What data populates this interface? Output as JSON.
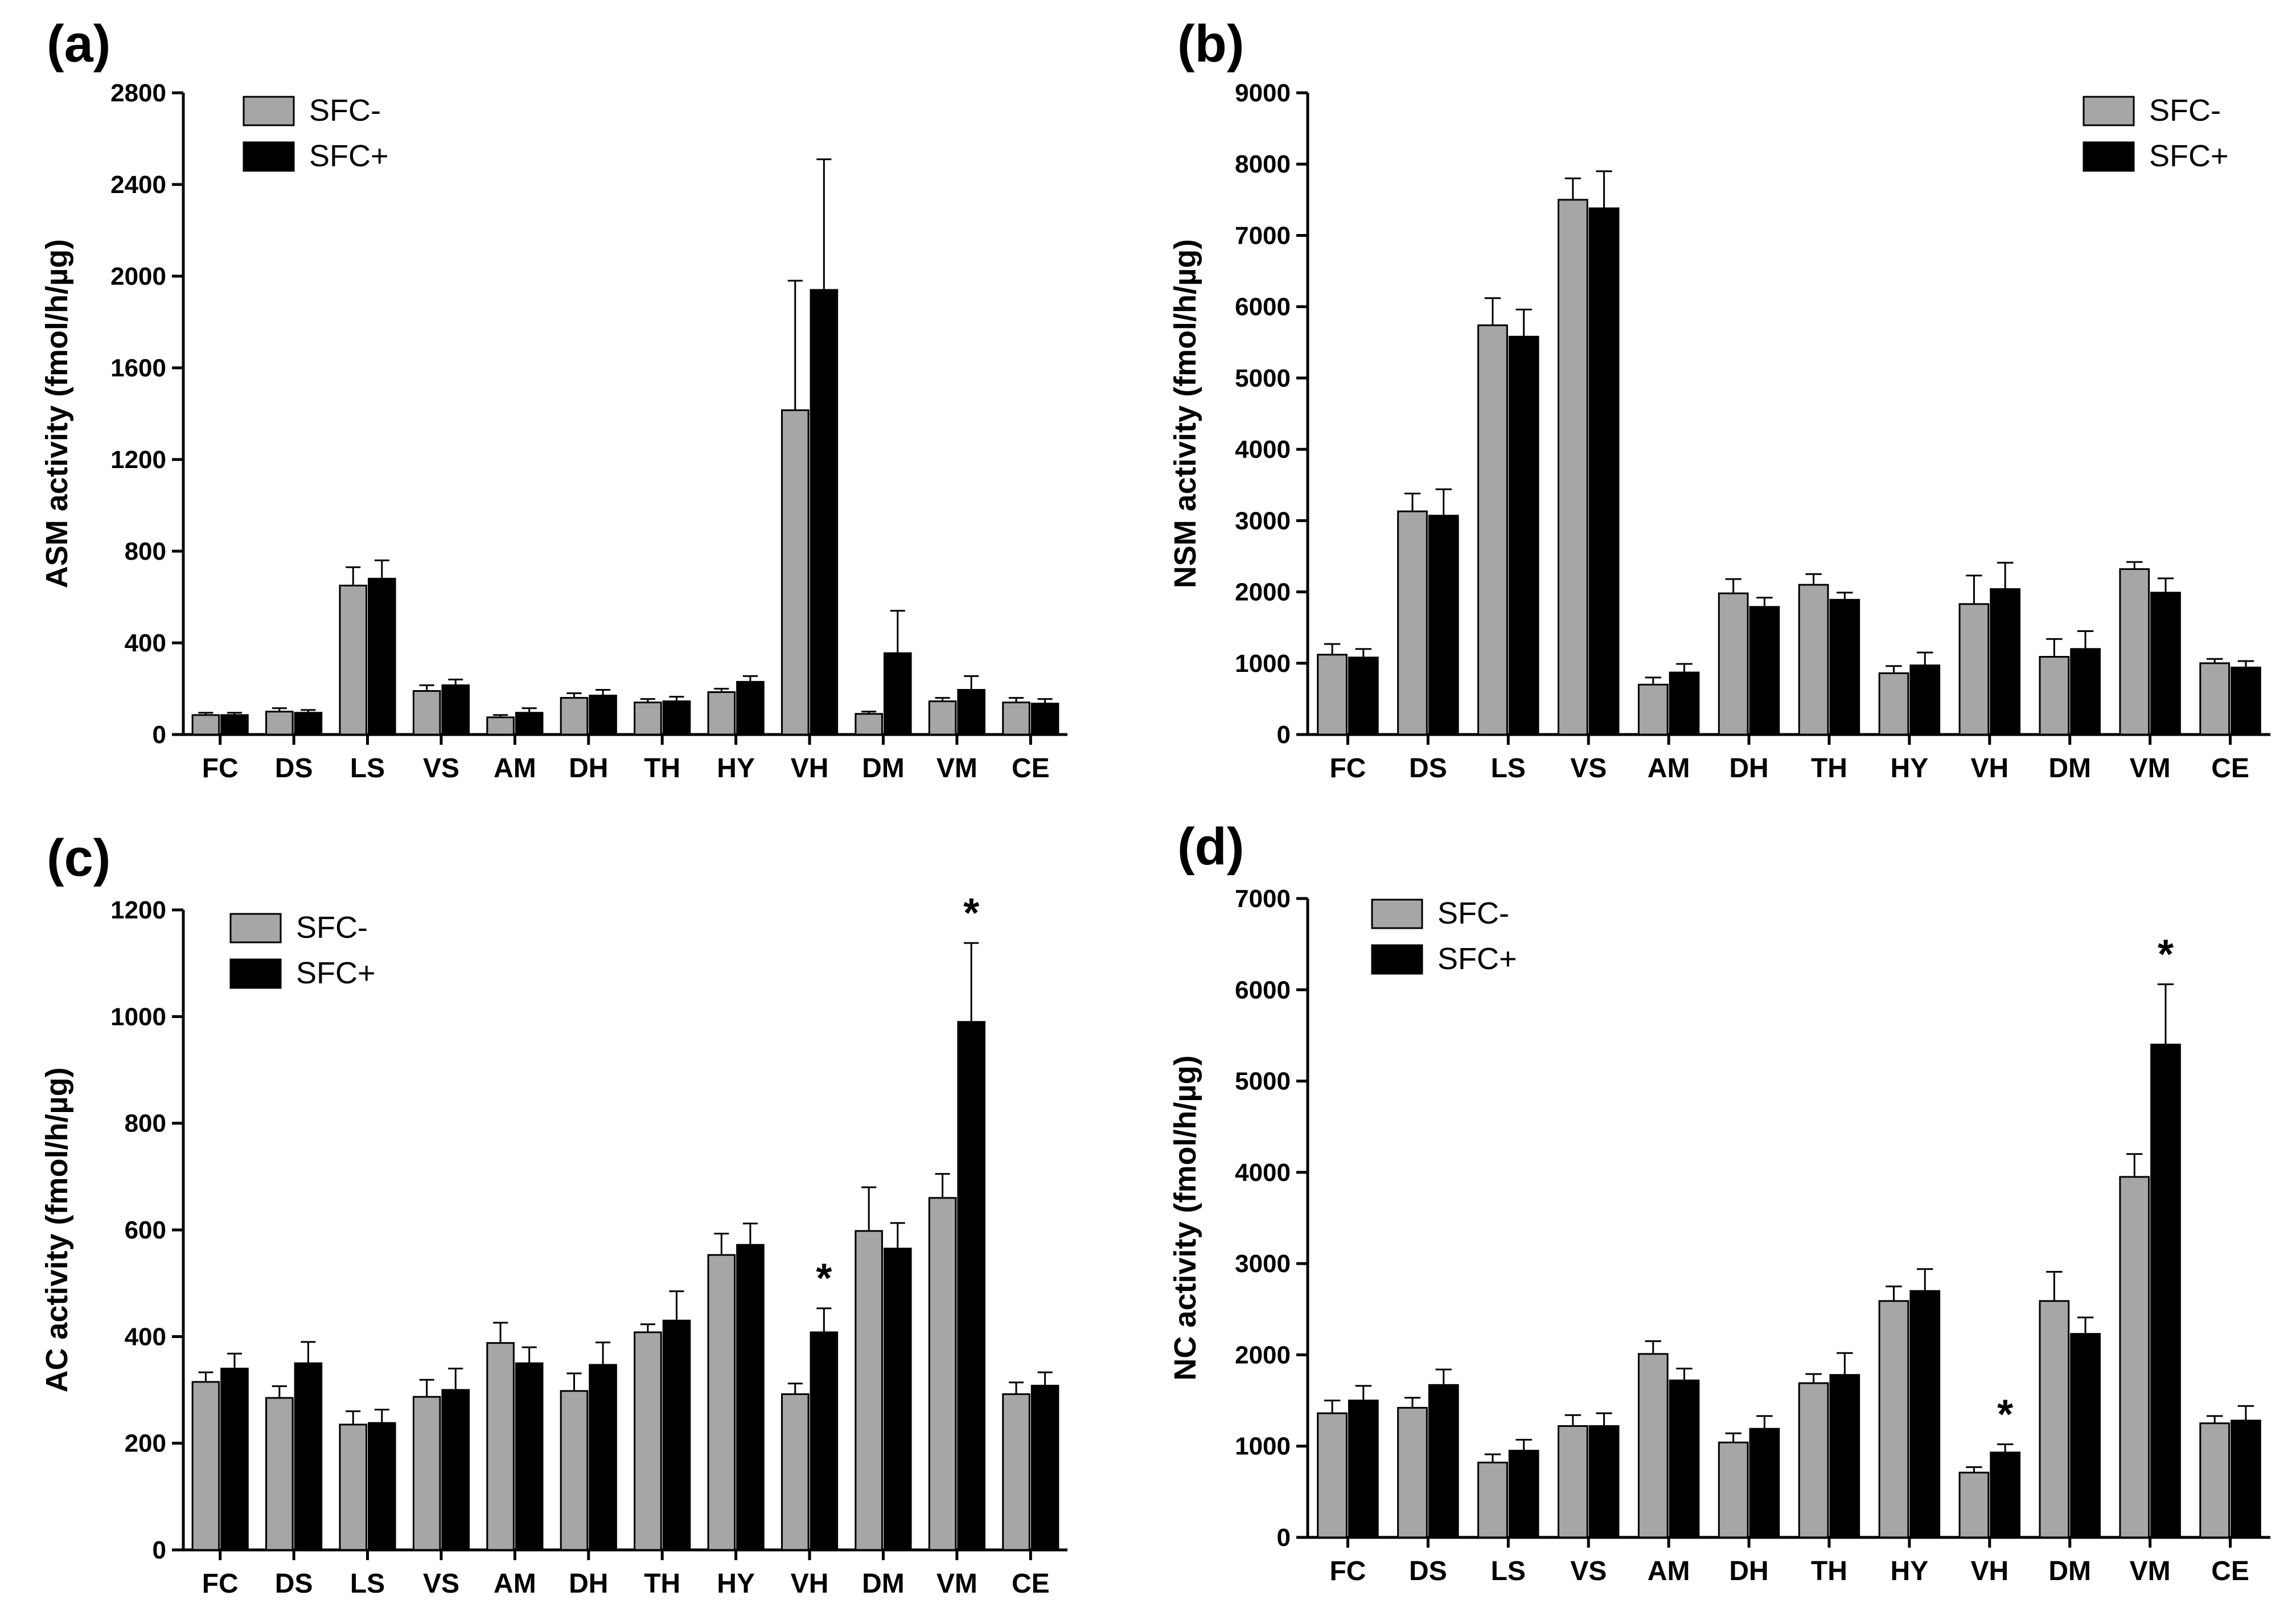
{
  "chart_data": [
    {
      "panel": "(a)",
      "type": "bar",
      "ylabel": "ASM activity  (fmol/h/µg)",
      "ylim": [
        0,
        2800
      ],
      "yticks": [
        0,
        400,
        800,
        1200,
        1600,
        2000,
        2400,
        2800
      ],
      "legend_position": "top-left",
      "categories": [
        "FC",
        "DS",
        "LS",
        "VS",
        "AM",
        "DH",
        "TH",
        "HY",
        "VH",
        "DM",
        "VM",
        "CE"
      ],
      "series": [
        {
          "name": "SFC-",
          "color": "#a6a6a6",
          "values": [
            85,
            100,
            650,
            190,
            75,
            160,
            140,
            185,
            1415,
            90,
            145,
            140
          ],
          "errors": [
            10,
            15,
            80,
            25,
            10,
            20,
            15,
            15,
            565,
            10,
            15,
            20
          ]
        },
        {
          "name": "SFC+",
          "color": "#000000",
          "values": [
            85,
            95,
            680,
            215,
            95,
            170,
            145,
            230,
            1940,
            355,
            195,
            135
          ],
          "errors": [
            10,
            12,
            80,
            25,
            20,
            25,
            20,
            25,
            570,
            185,
            60,
            20
          ]
        }
      ],
      "significance": [
        "",
        "",
        "",
        "",
        "",
        "",
        "",
        "",
        "",
        "",
        "",
        ""
      ]
    },
    {
      "panel": "(b)",
      "type": "bar",
      "ylabel": "NSM activity  (fmol/h/µg)",
      "ylim": [
        0,
        9000
      ],
      "yticks": [
        0,
        1000,
        2000,
        3000,
        4000,
        5000,
        6000,
        7000,
        8000,
        9000
      ],
      "legend_position": "top-right",
      "categories": [
        "FC",
        "DS",
        "LS",
        "VS",
        "AM",
        "DH",
        "TH",
        "HY",
        "VH",
        "DM",
        "VM",
        "CE"
      ],
      "series": [
        {
          "name": "SFC-",
          "color": "#a6a6a6",
          "values": [
            1120,
            3130,
            5740,
            7500,
            700,
            1980,
            2100,
            860,
            1830,
            1090,
            2320,
            1000
          ],
          "errors": [
            150,
            250,
            380,
            300,
            100,
            200,
            150,
            100,
            400,
            250,
            100,
            60
          ]
        },
        {
          "name": "SFC+",
          "color": "#000000",
          "values": [
            1080,
            3070,
            5580,
            7380,
            870,
            1790,
            1890,
            970,
            2040,
            1200,
            1990,
            940
          ],
          "errors": [
            120,
            370,
            380,
            520,
            120,
            130,
            100,
            180,
            370,
            250,
            200,
            90
          ]
        }
      ],
      "significance": [
        "",
        "",
        "",
        "",
        "",
        "",
        "",
        "",
        "",
        "",
        "",
        ""
      ]
    },
    {
      "panel": "(c)",
      "type": "bar",
      "ylabel": "AC activity  (fmol/h/µg)",
      "ylim": [
        0,
        1200
      ],
      "yticks": [
        0,
        200,
        400,
        600,
        800,
        1000,
        1200
      ],
      "legend_position": "top-left",
      "categories": [
        "FC",
        "DS",
        "LS",
        "VS",
        "AM",
        "DH",
        "TH",
        "HY",
        "VH",
        "DM",
        "VM",
        "CE"
      ],
      "series": [
        {
          "name": "SFC-",
          "color": "#a6a6a6",
          "values": [
            315,
            285,
            235,
            287,
            388,
            298,
            408,
            553,
            292,
            598,
            660,
            292
          ],
          "errors": [
            18,
            22,
            25,
            32,
            38,
            33,
            15,
            40,
            20,
            82,
            45,
            22
          ]
        },
        {
          "name": "SFC+",
          "color": "#000000",
          "values": [
            340,
            350,
            238,
            300,
            350,
            347,
            430,
            572,
            408,
            565,
            990,
            308
          ],
          "errors": [
            28,
            40,
            25,
            40,
            30,
            42,
            55,
            40,
            45,
            48,
            148,
            25
          ]
        }
      ],
      "significance": [
        "",
        "",
        "",
        "",
        "",
        "",
        "",
        "",
        "*",
        "",
        "*",
        ""
      ]
    },
    {
      "panel": "(d)",
      "type": "bar",
      "ylabel": "NC activity  (fmol/h/µg)",
      "ylim": [
        0,
        7000
      ],
      "yticks": [
        0,
        1000,
        2000,
        3000,
        4000,
        5000,
        6000,
        7000
      ],
      "legend_position": "top-left",
      "categories": [
        "FC",
        "DS",
        "LS",
        "VS",
        "AM",
        "DH",
        "TH",
        "HY",
        "VH",
        "DM",
        "VM",
        "CE"
      ],
      "series": [
        {
          "name": "SFC-",
          "color": "#a6a6a6",
          "values": [
            1360,
            1420,
            820,
            1220,
            2010,
            1040,
            1690,
            2590,
            710,
            2590,
            3950,
            1250
          ],
          "errors": [
            140,
            110,
            90,
            120,
            140,
            100,
            100,
            160,
            60,
            320,
            250,
            80
          ]
        },
        {
          "name": "SFC+",
          "color": "#000000",
          "values": [
            1500,
            1670,
            950,
            1220,
            1720,
            1190,
            1780,
            2700,
            930,
            2230,
            5400,
            1280
          ],
          "errors": [
            160,
            170,
            120,
            140,
            130,
            140,
            240,
            240,
            90,
            180,
            660,
            160
          ]
        }
      ],
      "significance": [
        "",
        "",
        "",
        "",
        "",
        "",
        "",
        "",
        "*",
        "",
        "*",
        ""
      ]
    }
  ]
}
